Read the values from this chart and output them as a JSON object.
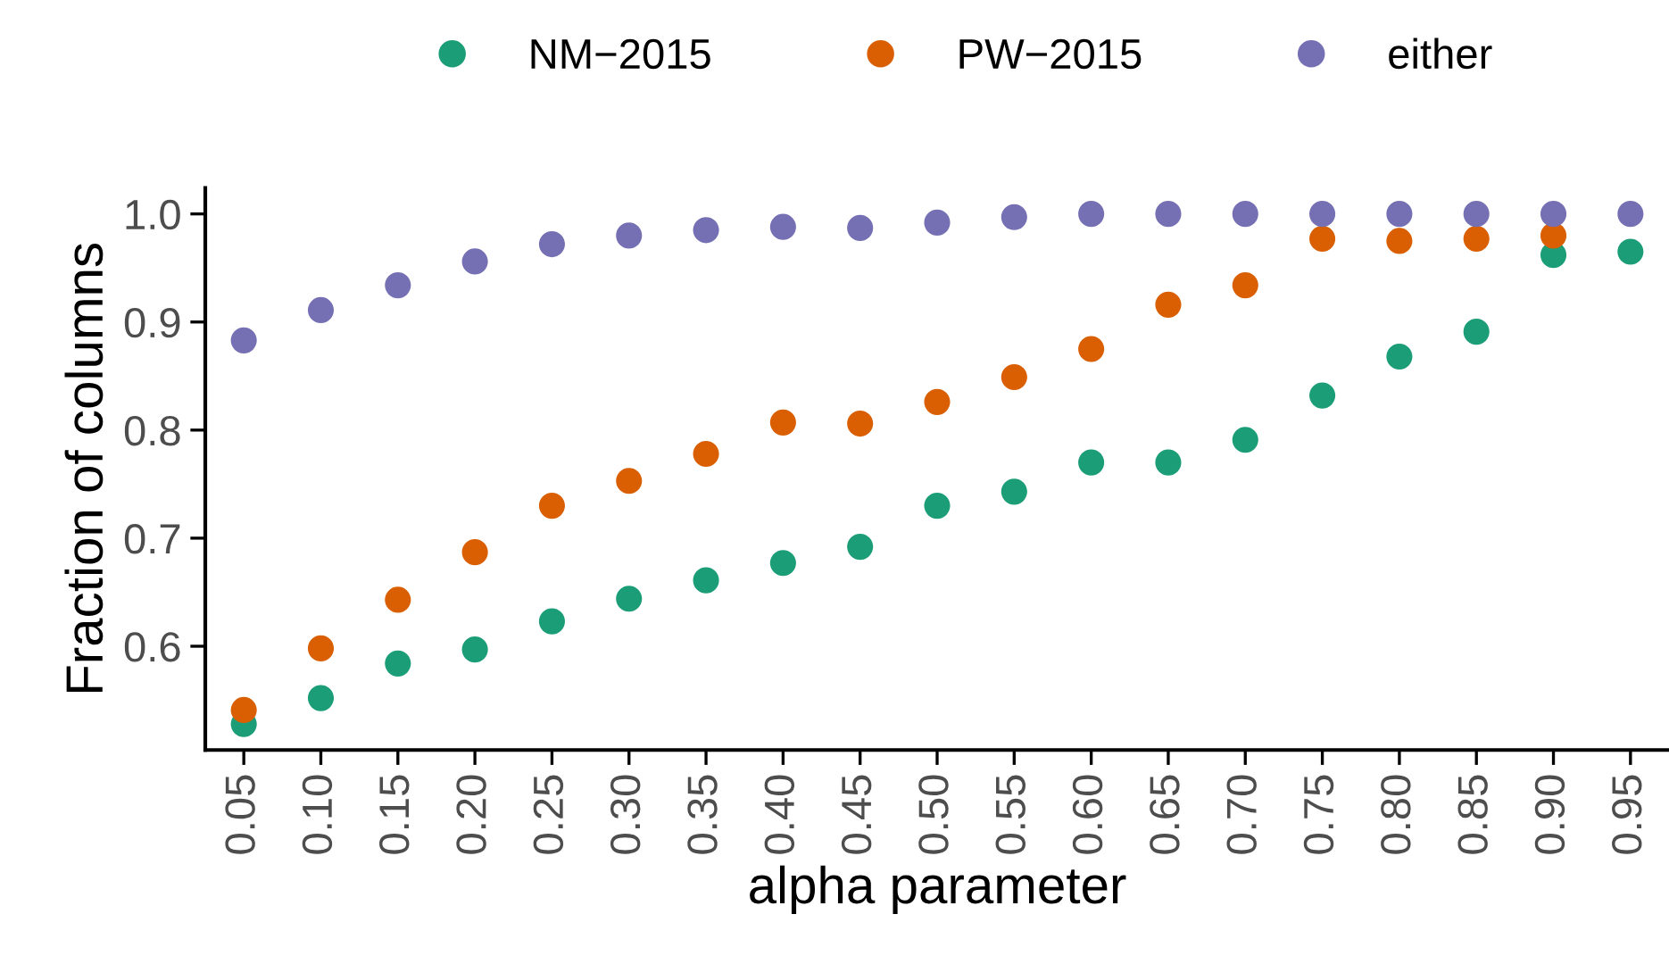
{
  "chart_data": {
    "type": "scatter",
    "xlabel": "alpha parameter",
    "ylabel": "Fraction of columns",
    "categories": [
      "0.05",
      "0.10",
      "0.15",
      "0.20",
      "0.25",
      "0.30",
      "0.35",
      "0.40",
      "0.45",
      "0.50",
      "0.55",
      "0.60",
      "0.65",
      "0.70",
      "0.75",
      "0.80",
      "0.85",
      "0.90",
      "0.95"
    ],
    "series": [
      {
        "name": "NM−2015",
        "color": "#1b9e77",
        "values": [
          0.528,
          0.552,
          0.584,
          0.597,
          0.623,
          0.644,
          0.661,
          0.677,
          0.692,
          0.73,
          0.743,
          0.77,
          0.77,
          0.791,
          0.832,
          0.868,
          0.891,
          0.962,
          0.965
        ]
      },
      {
        "name": "PW−2015",
        "color": "#d95f02",
        "values": [
          0.541,
          0.598,
          0.643,
          0.687,
          0.73,
          0.753,
          0.778,
          0.807,
          0.806,
          0.826,
          0.849,
          0.875,
          0.916,
          0.934,
          0.977,
          0.975,
          0.977,
          0.98,
          null
        ]
      },
      {
        "name": "either",
        "color": "#7570b3",
        "values": [
          0.883,
          0.911,
          0.934,
          0.956,
          0.972,
          0.98,
          0.985,
          0.988,
          0.987,
          0.992,
          0.997,
          1.0,
          1.0,
          1.0,
          1.0,
          1.0,
          1.0,
          1.0,
          1.0
        ]
      }
    ],
    "ylim": [
      0.504,
      1.024
    ],
    "yticks": [
      0.6,
      0.7,
      0.8,
      0.9,
      {
        "value": 1.0,
        "label": "1.0"
      }
    ],
    "grid": false,
    "legend": "top",
    "marker": "circle"
  }
}
